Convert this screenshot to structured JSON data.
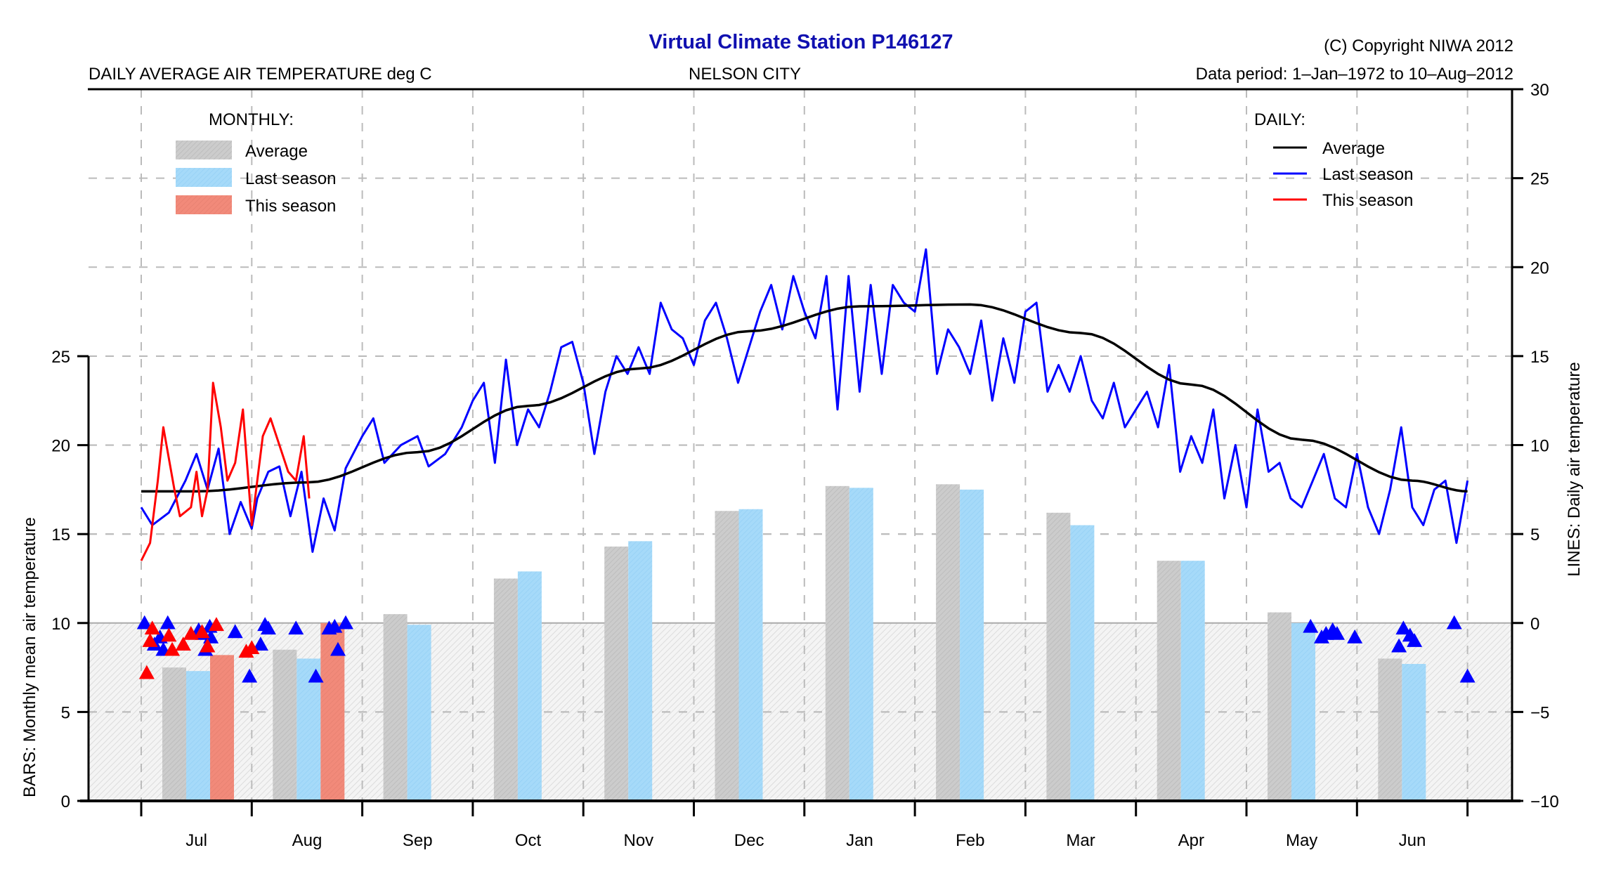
{
  "header": {
    "title": "Virtual Climate Station P146127",
    "copyright": "(C) Copyright NIWA  2012",
    "subtitle_left": "DAILY AVERAGE AIR TEMPERATURE deg C",
    "subtitle_center": "NELSON CITY",
    "data_period": "Data period:  1–Jan–1972  to  10–Aug–2012"
  },
  "colors": {
    "title": "#1010b0",
    "bar_average": "#c8c8c8",
    "bar_last_season": "#a0d8fa",
    "bar_this_season": "#f08a7a",
    "line_average": "#000000",
    "line_last_season": "#0000ff",
    "line_this_season": "#ff0000",
    "frost_band": "#ececec",
    "grid": "#bbbbbb"
  },
  "chart_data": {
    "type": "bar+line",
    "title": "Virtual Climate Station P146127",
    "categories": [
      "Jul",
      "Aug",
      "Sep",
      "Oct",
      "Nov",
      "Dec",
      "Jan",
      "Feb",
      "Mar",
      "Apr",
      "May",
      "Jun"
    ],
    "left_axis": {
      "label": "BARS: Monthly mean air temperature",
      "ylim": [
        0,
        25
      ],
      "ticks": [
        "0",
        "5",
        "10",
        "15",
        "20",
        "25"
      ]
    },
    "right_axis": {
      "label": "LINES: Daily air temperature",
      "ylim": [
        -10,
        30
      ],
      "ticks": [
        "-10",
        "-5",
        "0",
        "5",
        "10",
        "15",
        "20",
        "25",
        "30"
      ]
    },
    "grid": true,
    "monthly_legend": {
      "heading": "MONTHLY:",
      "placement": "top-left",
      "items": [
        "Average",
        "Last season",
        "This season"
      ]
    },
    "daily_legend": {
      "heading": "DAILY:",
      "placement": "top-right",
      "items": [
        "Average",
        "Last season",
        "This season"
      ]
    },
    "bar_series": [
      {
        "name": "Average",
        "values": [
          7.5,
          8.5,
          10.5,
          12.5,
          14.3,
          16.3,
          17.7,
          17.8,
          16.2,
          13.5,
          10.6,
          8.0
        ]
      },
      {
        "name": "Last season",
        "values": [
          7.3,
          8.0,
          9.9,
          12.9,
          14.6,
          16.4,
          17.6,
          17.5,
          15.5,
          13.5,
          10.0,
          7.7
        ]
      },
      {
        "name": "This season",
        "values": [
          8.2,
          10.0,
          null,
          null,
          null,
          null,
          null,
          null,
          null,
          null,
          null,
          null
        ]
      }
    ],
    "daily_average_line": {
      "name": "Average",
      "month_mid_values": [
        7.4,
        7.9,
        9.6,
        12.2,
        14.3,
        16.4,
        17.8,
        17.9,
        16.3,
        13.4,
        10.3,
        8.0
      ],
      "endpoint_values": [
        7.4,
        7.4
      ]
    },
    "daily_last_season_line": {
      "name": "Last season",
      "keypoints": [
        [
          0.0,
          6.5
        ],
        [
          0.1,
          5.5
        ],
        [
          0.25,
          6.2
        ],
        [
          0.4,
          8.0
        ],
        [
          0.5,
          9.5
        ],
        [
          0.6,
          7.5
        ],
        [
          0.7,
          9.8
        ],
        [
          0.8,
          5.0
        ],
        [
          0.9,
          6.8
        ],
        [
          1.0,
          5.3
        ],
        [
          1.05,
          7.0
        ],
        [
          1.15,
          8.5
        ],
        [
          1.25,
          8.8
        ],
        [
          1.35,
          6.0
        ],
        [
          1.45,
          8.5
        ],
        [
          1.55,
          4.0
        ],
        [
          1.65,
          7.0
        ],
        [
          1.75,
          5.2
        ],
        [
          1.85,
          8.7
        ],
        [
          2.0,
          10.5
        ],
        [
          2.1,
          11.5
        ],
        [
          2.2,
          9.0
        ],
        [
          2.35,
          10.0
        ],
        [
          2.5,
          10.5
        ],
        [
          2.6,
          8.8
        ],
        [
          2.75,
          9.5
        ],
        [
          2.9,
          11.0
        ],
        [
          3.0,
          12.5
        ],
        [
          3.1,
          13.5
        ],
        [
          3.2,
          9.0
        ],
        [
          3.3,
          14.8
        ],
        [
          3.4,
          10.0
        ],
        [
          3.5,
          12.0
        ],
        [
          3.6,
          11.0
        ],
        [
          3.7,
          13.0
        ],
        [
          3.8,
          15.5
        ],
        [
          3.9,
          15.8
        ],
        [
          4.0,
          13.5
        ],
        [
          4.1,
          9.5
        ],
        [
          4.2,
          13.0
        ],
        [
          4.3,
          15.0
        ],
        [
          4.4,
          14.0
        ],
        [
          4.5,
          15.5
        ],
        [
          4.6,
          14.0
        ],
        [
          4.7,
          18.0
        ],
        [
          4.8,
          16.5
        ],
        [
          4.9,
          16.0
        ],
        [
          5.0,
          14.5
        ],
        [
          5.1,
          17.0
        ],
        [
          5.2,
          18.0
        ],
        [
          5.3,
          16.0
        ],
        [
          5.4,
          13.5
        ],
        [
          5.5,
          15.5
        ],
        [
          5.6,
          17.5
        ],
        [
          5.7,
          19.0
        ],
        [
          5.8,
          16.5
        ],
        [
          5.9,
          19.5
        ],
        [
          6.0,
          17.5
        ],
        [
          6.1,
          16.0
        ],
        [
          6.2,
          19.5
        ],
        [
          6.3,
          12.0
        ],
        [
          6.4,
          19.5
        ],
        [
          6.5,
          13.0
        ],
        [
          6.6,
          19.0
        ],
        [
          6.7,
          14.0
        ],
        [
          6.8,
          19.0
        ],
        [
          6.9,
          18.0
        ],
        [
          7.0,
          17.5
        ],
        [
          7.1,
          21.0
        ],
        [
          7.2,
          14.0
        ],
        [
          7.3,
          16.5
        ],
        [
          7.4,
          15.5
        ],
        [
          7.5,
          14.0
        ],
        [
          7.6,
          17.0
        ],
        [
          7.7,
          12.5
        ],
        [
          7.8,
          16.0
        ],
        [
          7.9,
          13.5
        ],
        [
          8.0,
          17.5
        ],
        [
          8.1,
          18.0
        ],
        [
          8.2,
          13.0
        ],
        [
          8.3,
          14.5
        ],
        [
          8.4,
          13.0
        ],
        [
          8.5,
          15.0
        ],
        [
          8.6,
          12.5
        ],
        [
          8.7,
          11.5
        ],
        [
          8.8,
          13.5
        ],
        [
          8.9,
          11.0
        ],
        [
          9.0,
          12.0
        ],
        [
          9.1,
          13.0
        ],
        [
          9.2,
          11.0
        ],
        [
          9.3,
          14.5
        ],
        [
          9.4,
          8.5
        ],
        [
          9.5,
          10.5
        ],
        [
          9.6,
          9.0
        ],
        [
          9.7,
          12.0
        ],
        [
          9.8,
          7.0
        ],
        [
          9.9,
          10.0
        ],
        [
          10.0,
          6.5
        ],
        [
          10.1,
          12.0
        ],
        [
          10.2,
          8.5
        ],
        [
          10.3,
          9.0
        ],
        [
          10.4,
          7.0
        ],
        [
          10.5,
          6.5
        ],
        [
          10.6,
          8.0
        ],
        [
          10.7,
          9.5
        ],
        [
          10.8,
          7.0
        ],
        [
          10.9,
          6.5
        ],
        [
          11.0,
          9.5
        ],
        [
          11.1,
          6.5
        ],
        [
          11.2,
          5.0
        ],
        [
          11.3,
          7.5
        ],
        [
          11.4,
          11.0
        ],
        [
          11.5,
          6.5
        ],
        [
          11.6,
          5.5
        ],
        [
          11.7,
          7.5
        ],
        [
          11.8,
          8.0
        ],
        [
          11.9,
          4.5
        ],
        [
          12.0,
          8.0
        ]
      ],
      "x_units": "months since 1-Jul"
    },
    "daily_this_season_line": {
      "name": "This season",
      "keypoints": [
        [
          0.0,
          3.5
        ],
        [
          0.08,
          4.5
        ],
        [
          0.15,
          8.0
        ],
        [
          0.2,
          11.0
        ],
        [
          0.3,
          7.5
        ],
        [
          0.35,
          6.0
        ],
        [
          0.45,
          6.5
        ],
        [
          0.5,
          8.5
        ],
        [
          0.55,
          6.0
        ],
        [
          0.6,
          7.5
        ],
        [
          0.65,
          13.5
        ],
        [
          0.72,
          11.0
        ],
        [
          0.78,
          8.0
        ],
        [
          0.85,
          9.0
        ],
        [
          0.92,
          12.0
        ],
        [
          1.0,
          5.5
        ],
        [
          1.1,
          10.5
        ],
        [
          1.17,
          11.5
        ],
        [
          1.25,
          10.0
        ],
        [
          1.33,
          8.5
        ],
        [
          1.4,
          8.0
        ],
        [
          1.47,
          10.5
        ],
        [
          1.52,
          7.0
        ]
      ]
    },
    "frost_markers": {
      "symbol": "triangle",
      "this_season": [
        {
          "x": 0.05,
          "y": -2.8
        },
        {
          "x": 0.08,
          "y": -1.0
        },
        {
          "x": 0.1,
          "y": -0.3
        },
        {
          "x": 0.25,
          "y": -0.7
        },
        {
          "x": 0.28,
          "y": -1.5
        },
        {
          "x": 0.38,
          "y": -1.2
        },
        {
          "x": 0.45,
          "y": -0.6
        },
        {
          "x": 0.55,
          "y": -0.5
        },
        {
          "x": 0.6,
          "y": -1.3
        },
        {
          "x": 0.68,
          "y": -0.1
        },
        {
          "x": 0.95,
          "y": -1.6
        },
        {
          "x": 1.0,
          "y": -1.4
        }
      ],
      "last_season": [
        {
          "x": 0.03,
          "y": 0.0
        },
        {
          "x": 0.12,
          "y": -1.2
        },
        {
          "x": 0.17,
          "y": -0.8
        },
        {
          "x": 0.2,
          "y": -1.5
        },
        {
          "x": 0.24,
          "y": 0.0
        },
        {
          "x": 0.52,
          "y": -0.4
        },
        {
          "x": 0.56,
          "y": -0.6
        },
        {
          "x": 0.62,
          "y": -0.2
        },
        {
          "x": 0.63,
          "y": -0.8
        },
        {
          "x": 0.58,
          "y": -1.5
        },
        {
          "x": 0.85,
          "y": -0.5
        },
        {
          "x": 0.98,
          "y": -3.0
        },
        {
          "x": 1.08,
          "y": -1.2
        },
        {
          "x": 1.12,
          "y": -0.1
        },
        {
          "x": 1.15,
          "y": -0.3
        },
        {
          "x": 1.4,
          "y": -0.3
        },
        {
          "x": 1.58,
          "y": -3.0
        },
        {
          "x": 1.7,
          "y": -0.3
        },
        {
          "x": 1.75,
          "y": -0.2
        },
        {
          "x": 1.78,
          "y": -1.5
        },
        {
          "x": 1.85,
          "y": 0.0
        },
        {
          "x": 10.58,
          "y": -0.2
        },
        {
          "x": 10.68,
          "y": -0.8
        },
        {
          "x": 10.72,
          "y": -0.6
        },
        {
          "x": 10.78,
          "y": -0.4
        },
        {
          "x": 10.82,
          "y": -0.6
        },
        {
          "x": 10.98,
          "y": -0.8
        },
        {
          "x": 11.38,
          "y": -1.3
        },
        {
          "x": 11.42,
          "y": -0.3
        },
        {
          "x": 11.48,
          "y": -0.7
        },
        {
          "x": 11.52,
          "y": -1.0
        },
        {
          "x": 11.88,
          "y": 0.0
        },
        {
          "x": 12.0,
          "y": -3.0
        }
      ]
    }
  }
}
